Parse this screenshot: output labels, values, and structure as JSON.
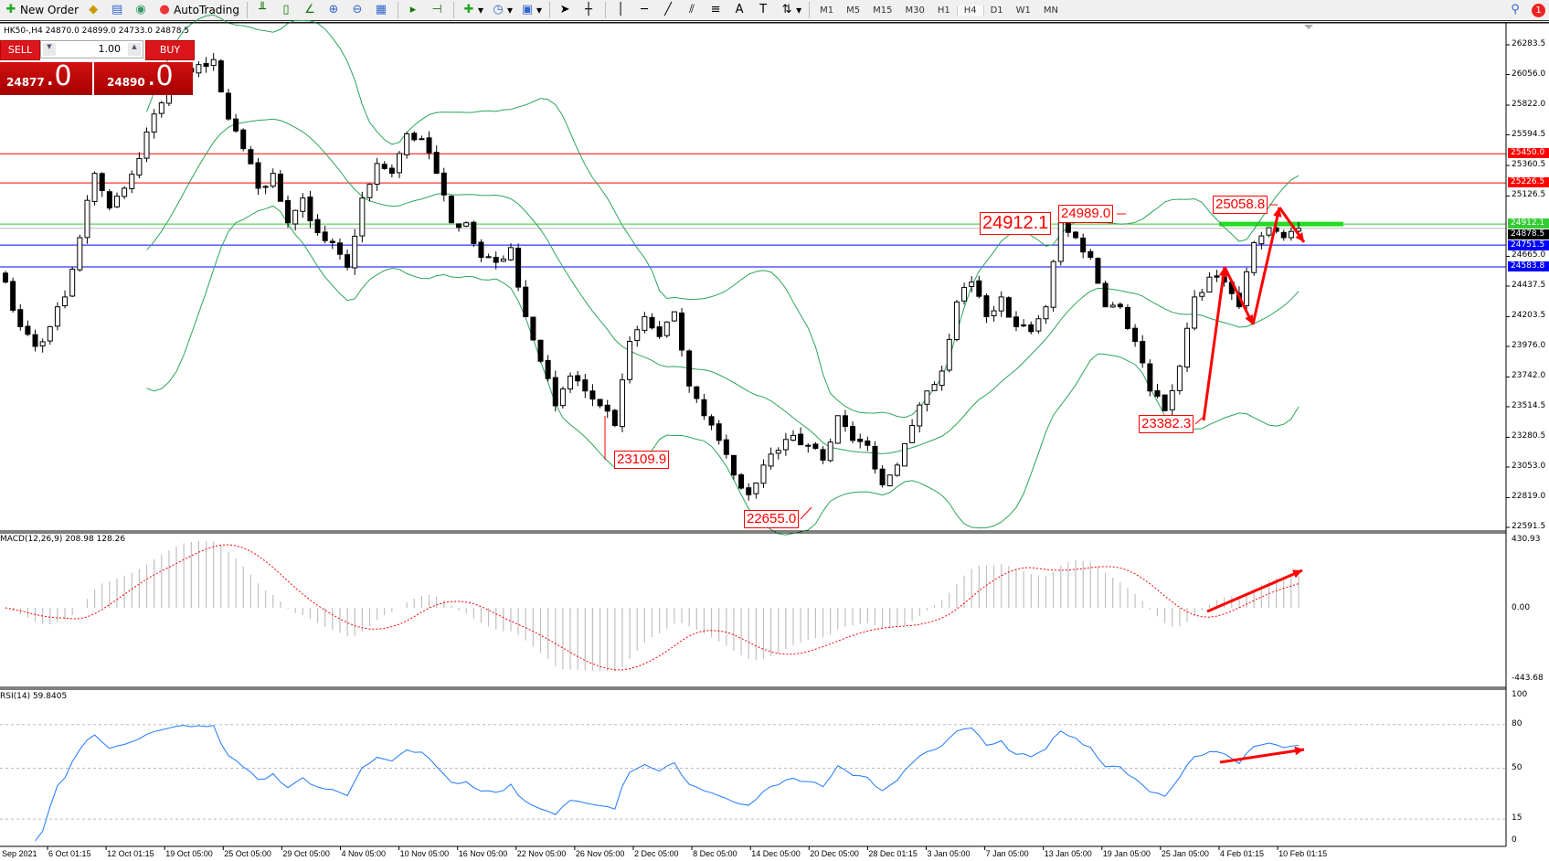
{
  "toolbar": {
    "new_order": "New Order",
    "auto_trading": "AutoTrading",
    "timeframes": [
      "M1",
      "M5",
      "M15",
      "M30",
      "H1",
      "H4",
      "D1",
      "W1",
      "MN"
    ],
    "active_timeframe": "H4",
    "notification_count": "1",
    "tools": [
      "market-watch-icon",
      "navigator-icon",
      "signals-icon",
      "bar-chart-icon",
      "candlestick-icon",
      "line-chart-icon",
      "zoom-in-icon",
      "zoom-out-icon",
      "tile-windows-icon",
      "auto-scroll-icon",
      "chart-shift-icon",
      "indicators-icon",
      "periods-icon",
      "templates-icon",
      "cursor-icon",
      "crosshair-icon",
      "vertical-line-icon",
      "horizontal-line-icon",
      "trendline-icon",
      "equidistant-channel-icon",
      "fibonacci-icon",
      "text-icon",
      "text-label-icon",
      "arrows-icon"
    ]
  },
  "chart": {
    "symbol_info": "HK50-,H4  24870.0 24899.0 24733.0 24878.5",
    "trade": {
      "sell": "SELL",
      "buy": "BUY",
      "lots": "1.00",
      "bid_main": "24877",
      "bid_frac": "0",
      "ask_main": "24890",
      "ask_frac": "0"
    },
    "macd_label": "MACD(12,26,9) 208.98 128.26",
    "rsi_label": "RSI(14) 59.8405"
  },
  "chart_data": {
    "type": "candlestick",
    "price_ticks": [
      "26283.5",
      "26056.0",
      "25822.0",
      "25594.5",
      "25360.5",
      "25126.5",
      "24665.0",
      "24437.5",
      "24203.5",
      "23976.0",
      "23742.0",
      "23514.5",
      "23280.5",
      "23053.0",
      "22819.0",
      "22591.5"
    ],
    "price_range": [
      22591.5,
      26283.5
    ],
    "time_labels": [
      "Sep 2021",
      "6 Oct 01:15",
      "12 Oct 01:15",
      "19 Oct 05:00",
      "25 Oct 05:00",
      "29 Oct 05:00",
      "4 Nov 05:00",
      "10 Nov 05:00",
      "16 Nov 05:00",
      "22 Nov 05:00",
      "26 Nov 05:00",
      "2 Dec 05:00",
      "8 Dec 05:00",
      "14 Dec 05:00",
      "20 Dec 05:00",
      "28 Dec 01:15",
      "3 Jan 05:00",
      "7 Jan 05:00",
      "13 Jan 05:00",
      "19 Jan 05:00",
      "25 Jan 05:00",
      "4 Feb 01:15",
      "10 Feb 01:15"
    ],
    "closes": [
      24468,
      24127,
      23976,
      24127,
      24354,
      24808,
      25300,
      25035,
      25186,
      25413,
      25754,
      25943,
      26094,
      26132,
      26170,
      25716,
      25489,
      25186,
      25300,
      24922,
      25111,
      24846,
      24770,
      24581,
      25111,
      25375,
      25300,
      25602,
      25565,
      25300,
      24922,
      24922,
      24657,
      24619,
      24732,
      24203,
      23862,
      23522,
      23749,
      23635,
      23522,
      23371,
      24014,
      24203,
      24051,
      24241,
      23673,
      23446,
      23257,
      22992,
      22841,
      23068,
      23181,
      23295,
      23219,
      23106,
      23446,
      23257,
      23219,
      22917,
      23068,
      23371,
      23635,
      23787,
      24316,
      24468,
      24203,
      24354,
      24127,
      24089,
      24279,
      24922,
      24808,
      24657,
      24279,
      24279,
      24014,
      23635,
      23484,
      23824,
      24354,
      24506,
      24468,
      24279,
      24770,
      24884,
      24808,
      24878.5
    ],
    "horizontal_lines": [
      {
        "price": "25450.0",
        "color": "#ff0000"
      },
      {
        "price": "25226.5",
        "color": "#ff0000"
      },
      {
        "price": "24912.1",
        "color": "#33cc33"
      },
      {
        "price": "24878.5",
        "color": "#000000"
      },
      {
        "price": "24751.5",
        "color": "#0000ff"
      },
      {
        "price": "24583.8",
        "color": "#0000ff"
      }
    ],
    "annotations": [
      "24912.1",
      "24989.0",
      "25058.8",
      "23109.9",
      "22655.0",
      "23382.3"
    ],
    "indicators": {
      "bollinger": {
        "period": 20,
        "deviation": 2,
        "color": "#2ca55a"
      },
      "macd": {
        "fast": 12,
        "slow": 26,
        "signal": 9,
        "ticks": [
          "430.93",
          "0.00",
          "-443.68"
        ],
        "histogram_color": "#c0c0c0",
        "signal_color": "#ff0000"
      },
      "rsi": {
        "period": 14,
        "levels": [
          "80",
          "50",
          "15"
        ],
        "ticks": [
          "100",
          "80",
          "50",
          "15",
          "0"
        ],
        "color": "#1e78ff"
      }
    }
  }
}
